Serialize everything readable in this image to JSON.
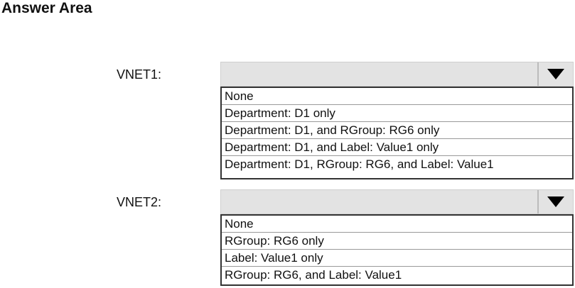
{
  "title": "Answer Area",
  "dropdowns": [
    {
      "label": "VNET1:",
      "selected": "",
      "options": [
        "None",
        "Department: D1 only",
        "Department: D1, and RGroup: RG6 only",
        "Department: D1, and Label: Value1 only",
        "Department: D1, RGroup: RG6, and Label: Value1"
      ]
    },
    {
      "label": "VNET2:",
      "selected": "",
      "options": [
        "None",
        "RGroup: RG6 only",
        "Label: Value1 only",
        "RGroup: RG6, and Label: Value1"
      ]
    }
  ]
}
